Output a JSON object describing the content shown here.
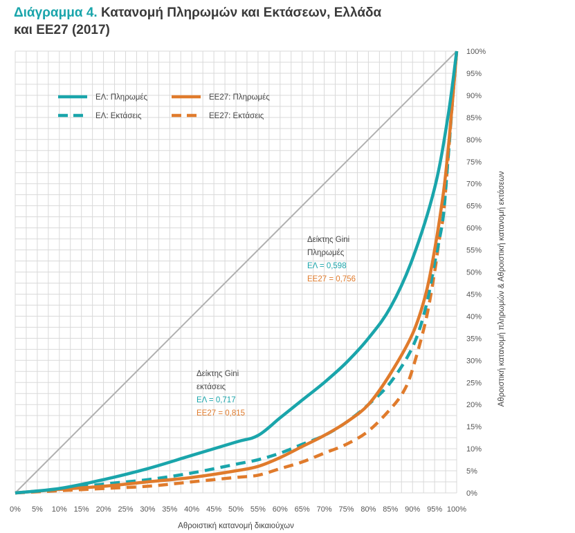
{
  "chart_data": {
    "type": "line",
    "title_lead": "Διάγραμμα 4.",
    "title_line1": "Κατανομή Πληρωμών και Εκτάσεων, Ελλάδα",
    "title_line2": "και ΕΕ27 (2017)",
    "xlabel": "Αθροιστική κατανομή δικαιούχων",
    "ylabel": "Αθροιστική κατανομή πληρωμών & Αθροιστική κατανομή εκτάσεων",
    "xlim": [
      0,
      100
    ],
    "ylim": [
      0,
      100
    ],
    "x_ticks": [
      "0%",
      "5%",
      "10%",
      "15%",
      "20%",
      "25%",
      "30%",
      "35%",
      "40%",
      "45%",
      "50%",
      "55%",
      "60%",
      "65%",
      "70%",
      "75%",
      "80%",
      "85%",
      "90%",
      "95%",
      "100%"
    ],
    "y_ticks": [
      "0%",
      "5%",
      "10%",
      "15%",
      "20%",
      "25%",
      "30%",
      "35%",
      "40%",
      "45%",
      "50%",
      "55%",
      "60%",
      "65%",
      "70%",
      "75%",
      "80%",
      "85%",
      "90%",
      "95%",
      "100%"
    ],
    "grid": true,
    "legend_position": "top-left",
    "colors": {
      "teal": "#1aa5ab",
      "orange": "#e07b2c",
      "diagonal": "#b0b0b0",
      "grid": "#d9d9d9"
    },
    "series": [
      {
        "name": "ΕΛ: Πληρωμές",
        "color": "#1aa5ab",
        "dash": false,
        "x": [
          0,
          10,
          20,
          30,
          40,
          50,
          55,
          60,
          65,
          70,
          75,
          80,
          85,
          90,
          95,
          98,
          100
        ],
        "y": [
          0,
          1,
          3,
          5.5,
          8.5,
          11.5,
          13,
          17,
          21,
          25,
          29.5,
          35,
          42,
          53,
          69,
          85,
          100
        ]
      },
      {
        "name": "ΕΛ: Εκτάσεις",
        "color": "#1aa5ab",
        "dash": true,
        "x": [
          0,
          10,
          20,
          30,
          40,
          50,
          55,
          60,
          65,
          70,
          75,
          80,
          85,
          90,
          93,
          95,
          96,
          97,
          98,
          99,
          100
        ],
        "y": [
          0,
          0.8,
          2,
          3,
          4.5,
          6.5,
          7.5,
          9,
          11,
          13,
          16,
          20,
          25,
          33,
          42,
          52,
          57,
          63,
          75,
          88,
          100
        ]
      },
      {
        "name": "ΕΕ27: Πληρωμές",
        "color": "#e07b2c",
        "dash": false,
        "x": [
          0,
          10,
          20,
          30,
          40,
          50,
          55,
          60,
          65,
          70,
          75,
          80,
          85,
          90,
          93,
          95,
          97,
          98,
          99,
          100
        ],
        "y": [
          0,
          0.8,
          1.5,
          2.5,
          3.5,
          5,
          6,
          8,
          10.5,
          13,
          16,
          20,
          27,
          36,
          45,
          55,
          68,
          77,
          88,
          100
        ]
      },
      {
        "name": "ΕΕ27: Εκτάσεις",
        "color": "#e07b2c",
        "dash": true,
        "x": [
          0,
          10,
          20,
          30,
          40,
          50,
          55,
          60,
          65,
          70,
          75,
          80,
          85,
          88,
          90,
          93,
          95,
          96,
          97,
          98,
          99,
          100
        ],
        "y": [
          0,
          0.5,
          1,
          1.5,
          2.5,
          3.5,
          4,
          5.5,
          7,
          9,
          11,
          14,
          19,
          23,
          28,
          39,
          50,
          57,
          63,
          75,
          88,
          100
        ]
      }
    ],
    "annotations": [
      {
        "line1": "Δείκτης Gini",
        "line2": "Πληρωμές",
        "el_label": "ΕΛ = 0,598",
        "ee_label": "ΕΕ27 = 0,756"
      },
      {
        "line1": "Δείκτης Gini",
        "line2": "εκτάσεις",
        "el_label": "ΕΛ = 0,717",
        "ee_label": "ΕΕ27 = 0,815"
      }
    ]
  }
}
